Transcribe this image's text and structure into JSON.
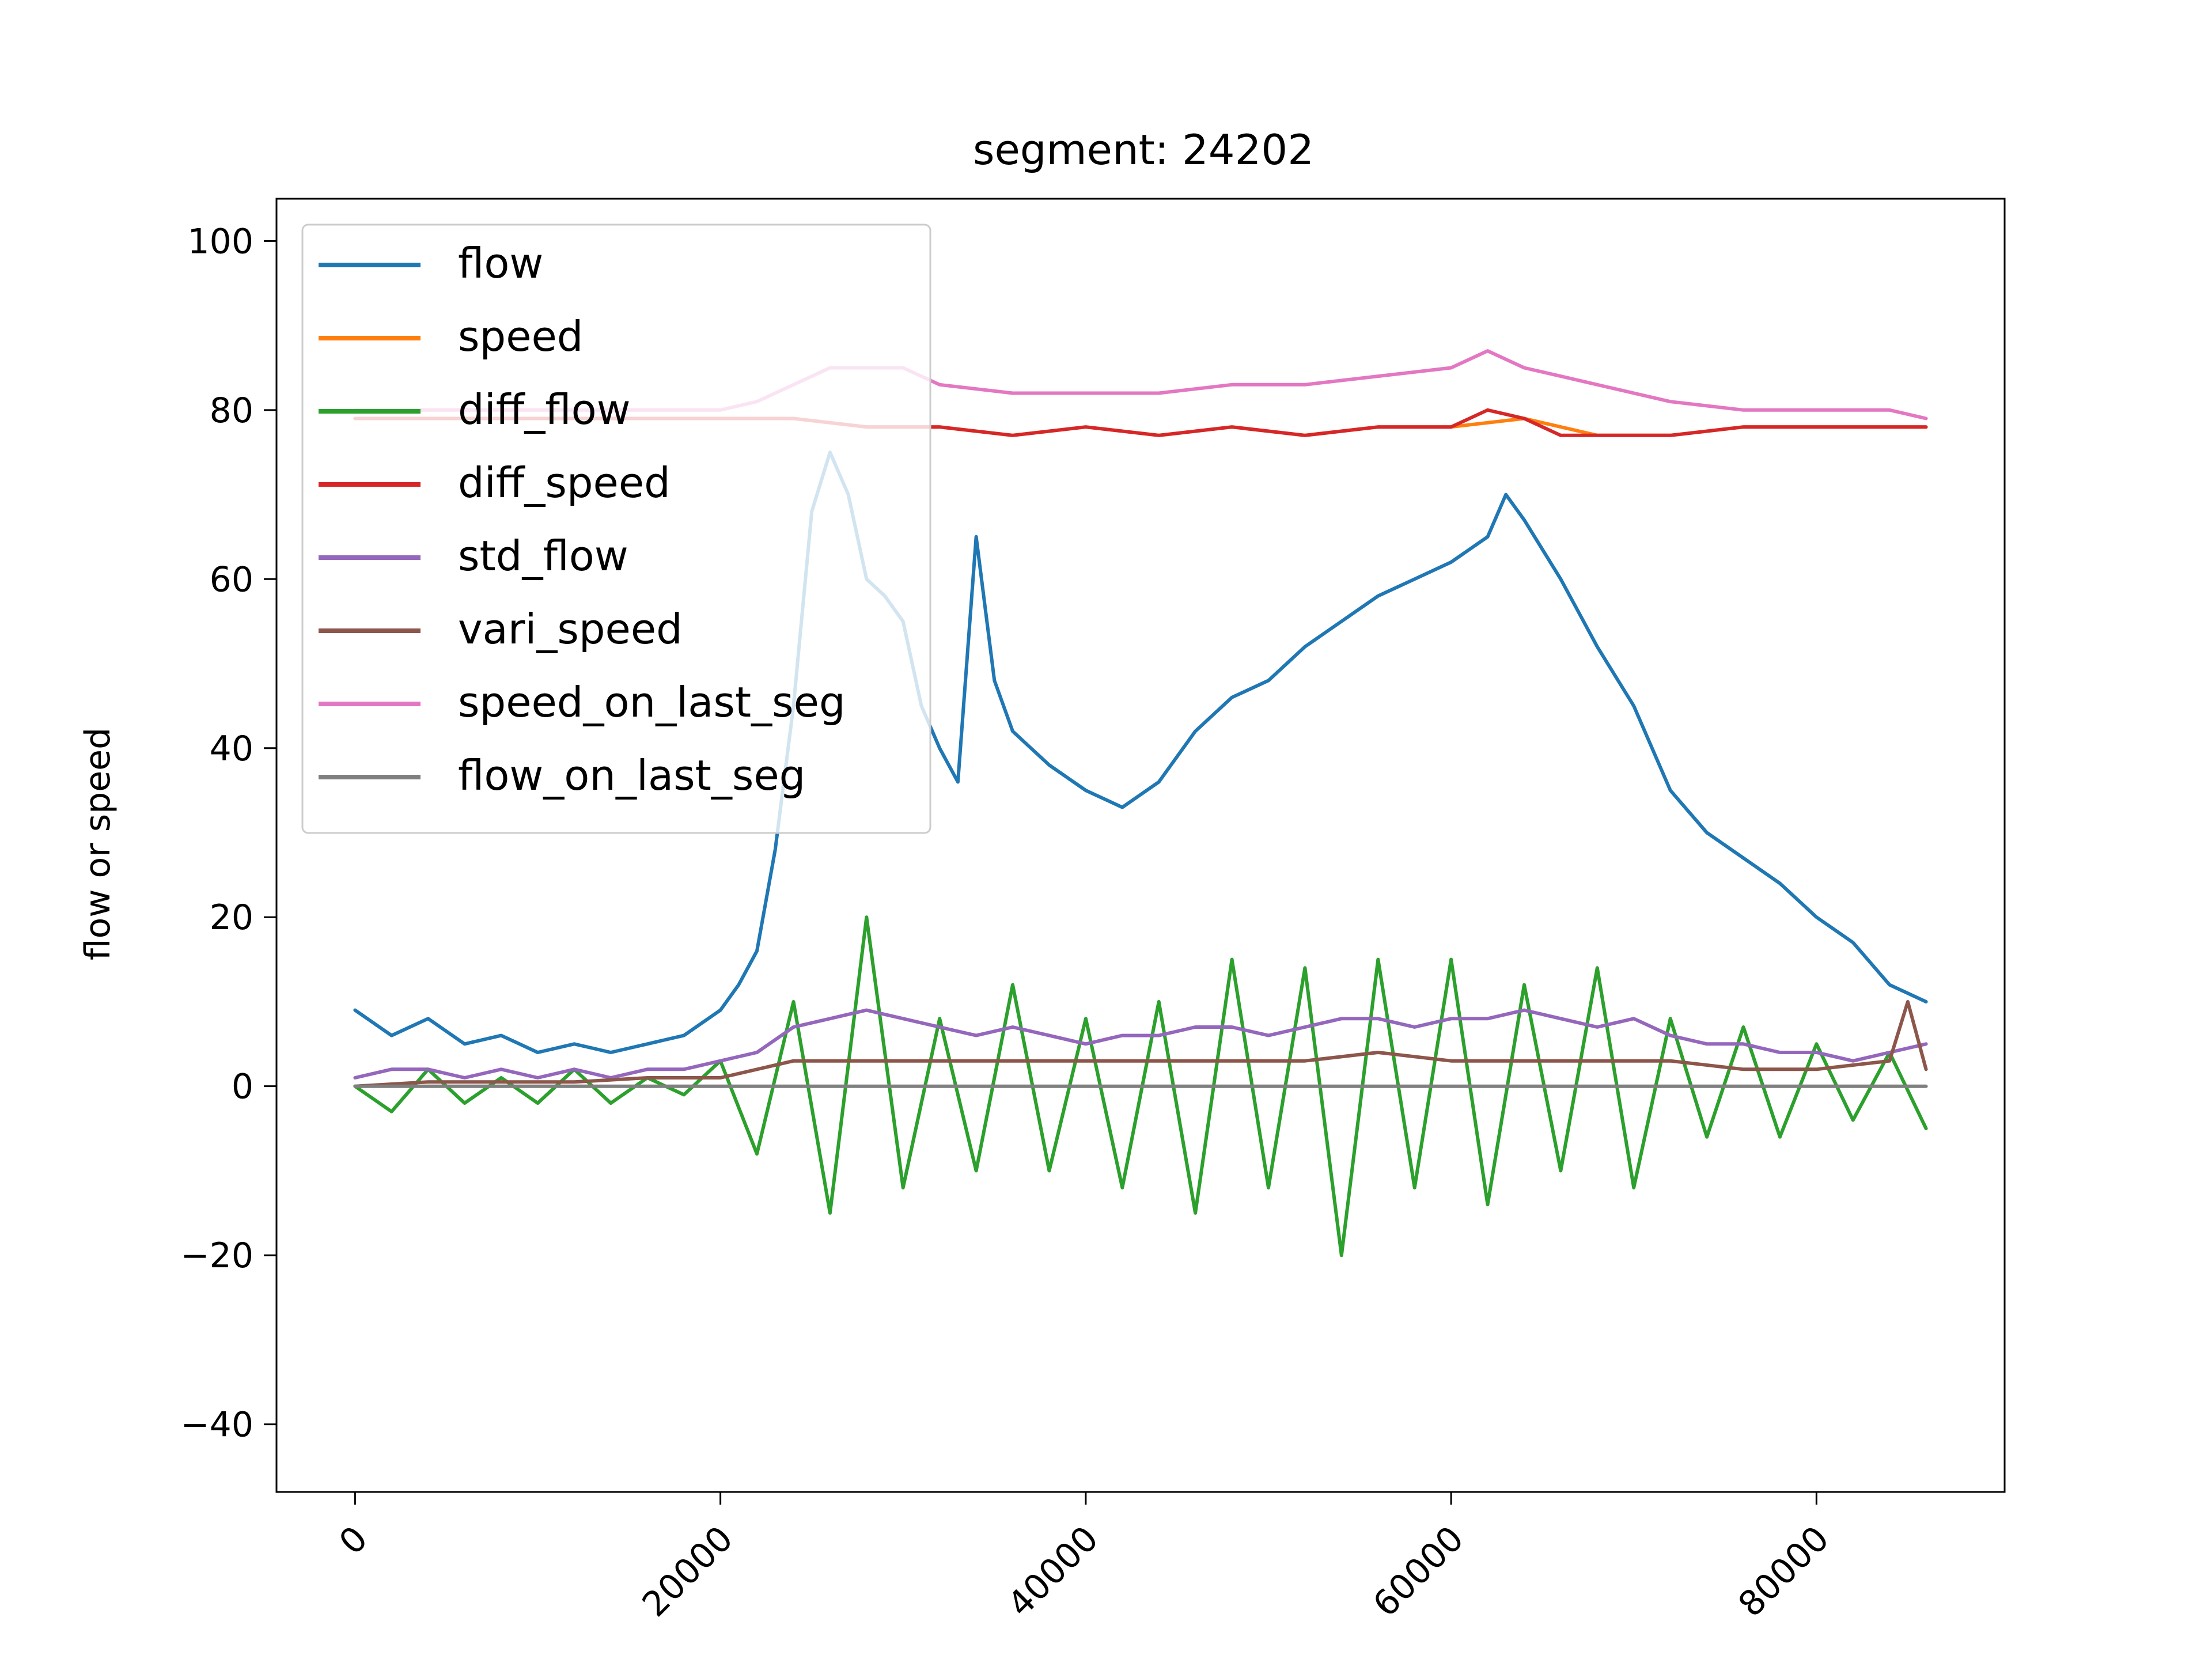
{
  "chart_data": {
    "type": "line",
    "title": "segment: 24202",
    "xlabel": "",
    "ylabel": "flow or speed",
    "xlim": [
      -4300,
      90300
    ],
    "ylim": [
      -48,
      105
    ],
    "xticks": [
      0,
      20000,
      40000,
      60000,
      80000
    ],
    "xtick_labels": [
      "0",
      "20000",
      "40000",
      "60000",
      "80000"
    ],
    "yticks": [
      -40,
      -20,
      0,
      20,
      40,
      60,
      80,
      100
    ],
    "ytick_labels": [
      "−40",
      "−20",
      "0",
      "20",
      "40",
      "60",
      "80",
      "100"
    ],
    "grid": false,
    "legend_position": "upper-left",
    "series": [
      {
        "name": "flow",
        "color": "#1f77b4",
        "x": [
          0,
          2000,
          4000,
          6000,
          8000,
          10000,
          12000,
          14000,
          16000,
          18000,
          20000,
          21000,
          22000,
          23000,
          24000,
          25000,
          26000,
          27000,
          28000,
          29000,
          30000,
          31000,
          32000,
          33000,
          34000,
          35000,
          36000,
          38000,
          40000,
          42000,
          44000,
          46000,
          48000,
          50000,
          52000,
          54000,
          56000,
          58000,
          60000,
          62000,
          63000,
          64000,
          66000,
          68000,
          70000,
          72000,
          74000,
          76000,
          78000,
          80000,
          82000,
          84000,
          86000
        ],
        "y": [
          9,
          6,
          8,
          5,
          6,
          4,
          5,
          4,
          5,
          6,
          9,
          12,
          16,
          28,
          45,
          68,
          75,
          70,
          60,
          58,
          55,
          45,
          40,
          36,
          65,
          48,
          42,
          38,
          35,
          33,
          36,
          42,
          46,
          48,
          52,
          55,
          58,
          60,
          62,
          65,
          70,
          67,
          60,
          52,
          45,
          35,
          30,
          27,
          24,
          20,
          17,
          12,
          10
        ]
      },
      {
        "name": "speed",
        "color": "#ff7f0e",
        "x": [
          0,
          4000,
          8000,
          12000,
          16000,
          20000,
          24000,
          28000,
          32000,
          36000,
          40000,
          44000,
          48000,
          52000,
          56000,
          60000,
          64000,
          68000,
          72000,
          76000,
          80000,
          84000,
          86000
        ],
        "y": [
          79,
          79,
          79,
          79,
          79,
          79,
          79,
          78,
          78,
          77,
          78,
          77,
          78,
          77,
          78,
          78,
          79,
          77,
          77,
          78,
          78,
          78,
          78
        ]
      },
      {
        "name": "diff_flow",
        "color": "#2ca02c",
        "x": [
          0,
          2000,
          4000,
          6000,
          8000,
          10000,
          12000,
          14000,
          16000,
          18000,
          20000,
          22000,
          24000,
          26000,
          28000,
          30000,
          32000,
          34000,
          36000,
          38000,
          40000,
          42000,
          44000,
          46000,
          48000,
          50000,
          52000,
          54000,
          56000,
          58000,
          60000,
          62000,
          64000,
          66000,
          68000,
          70000,
          72000,
          74000,
          76000,
          78000,
          80000,
          82000,
          84000,
          86000
        ],
        "y": [
          0,
          -3,
          2,
          -2,
          1,
          -2,
          2,
          -2,
          1,
          -1,
          3,
          -8,
          10,
          -15,
          20,
          -12,
          8,
          -10,
          12,
          -10,
          8,
          -12,
          10,
          -15,
          15,
          -12,
          14,
          -20,
          15,
          -12,
          15,
          -14,
          12,
          -10,
          14,
          -12,
          8,
          -6,
          7,
          -6,
          5,
          -4,
          4,
          -5
        ]
      },
      {
        "name": "diff_speed",
        "color": "#d62728",
        "x": [
          0,
          4000,
          8000,
          12000,
          16000,
          20000,
          24000,
          28000,
          32000,
          36000,
          40000,
          44000,
          48000,
          52000,
          56000,
          60000,
          62000,
          64000,
          66000,
          68000,
          72000,
          76000,
          80000,
          84000,
          86000
        ],
        "y": [
          79,
          79,
          79,
          79,
          79,
          79,
          79,
          78,
          78,
          77,
          78,
          77,
          78,
          77,
          78,
          78,
          80,
          79,
          77,
          77,
          77,
          78,
          78,
          78,
          78
        ]
      },
      {
        "name": "std_flow",
        "color": "#9467bd",
        "x": [
          0,
          2000,
          4000,
          6000,
          8000,
          10000,
          12000,
          14000,
          16000,
          18000,
          20000,
          22000,
          24000,
          26000,
          28000,
          30000,
          32000,
          34000,
          36000,
          38000,
          40000,
          42000,
          44000,
          46000,
          48000,
          50000,
          52000,
          54000,
          56000,
          58000,
          60000,
          62000,
          64000,
          66000,
          68000,
          70000,
          72000,
          74000,
          76000,
          78000,
          80000,
          82000,
          84000,
          86000
        ],
        "y": [
          1,
          2,
          2,
          1,
          2,
          1,
          2,
          1,
          2,
          2,
          3,
          4,
          7,
          8,
          9,
          8,
          7,
          6,
          7,
          6,
          5,
          6,
          6,
          7,
          7,
          6,
          7,
          8,
          8,
          7,
          8,
          8,
          9,
          8,
          7,
          8,
          6,
          5,
          5,
          4,
          4,
          3,
          4,
          5
        ]
      },
      {
        "name": "vari_speed",
        "color": "#8c564b",
        "x": [
          0,
          4000,
          8000,
          12000,
          16000,
          20000,
          24000,
          28000,
          32000,
          36000,
          40000,
          44000,
          48000,
          52000,
          56000,
          60000,
          64000,
          68000,
          72000,
          76000,
          80000,
          84000,
          85000,
          86000
        ],
        "y": [
          0,
          0.5,
          0.5,
          0.5,
          1,
          1,
          3,
          3,
          3,
          3,
          3,
          3,
          3,
          3,
          4,
          3,
          3,
          3,
          3,
          2,
          2,
          3,
          10,
          2
        ]
      },
      {
        "name": "speed_on_last_seg",
        "color": "#e377c2",
        "x": [
          0,
          4000,
          8000,
          12000,
          16000,
          20000,
          22000,
          24000,
          26000,
          28000,
          30000,
          32000,
          36000,
          40000,
          44000,
          48000,
          52000,
          56000,
          60000,
          62000,
          64000,
          66000,
          68000,
          72000,
          76000,
          80000,
          84000,
          86000
        ],
        "y": [
          80,
          80,
          80,
          80,
          80,
          80,
          81,
          83,
          85,
          85,
          85,
          83,
          82,
          82,
          82,
          83,
          83,
          84,
          85,
          87,
          85,
          84,
          83,
          81,
          80,
          80,
          80,
          79
        ]
      },
      {
        "name": "flow_on_last_seg",
        "color": "#7f7f7f",
        "x": [
          0,
          86000
        ],
        "y": [
          0,
          0
        ]
      }
    ]
  }
}
